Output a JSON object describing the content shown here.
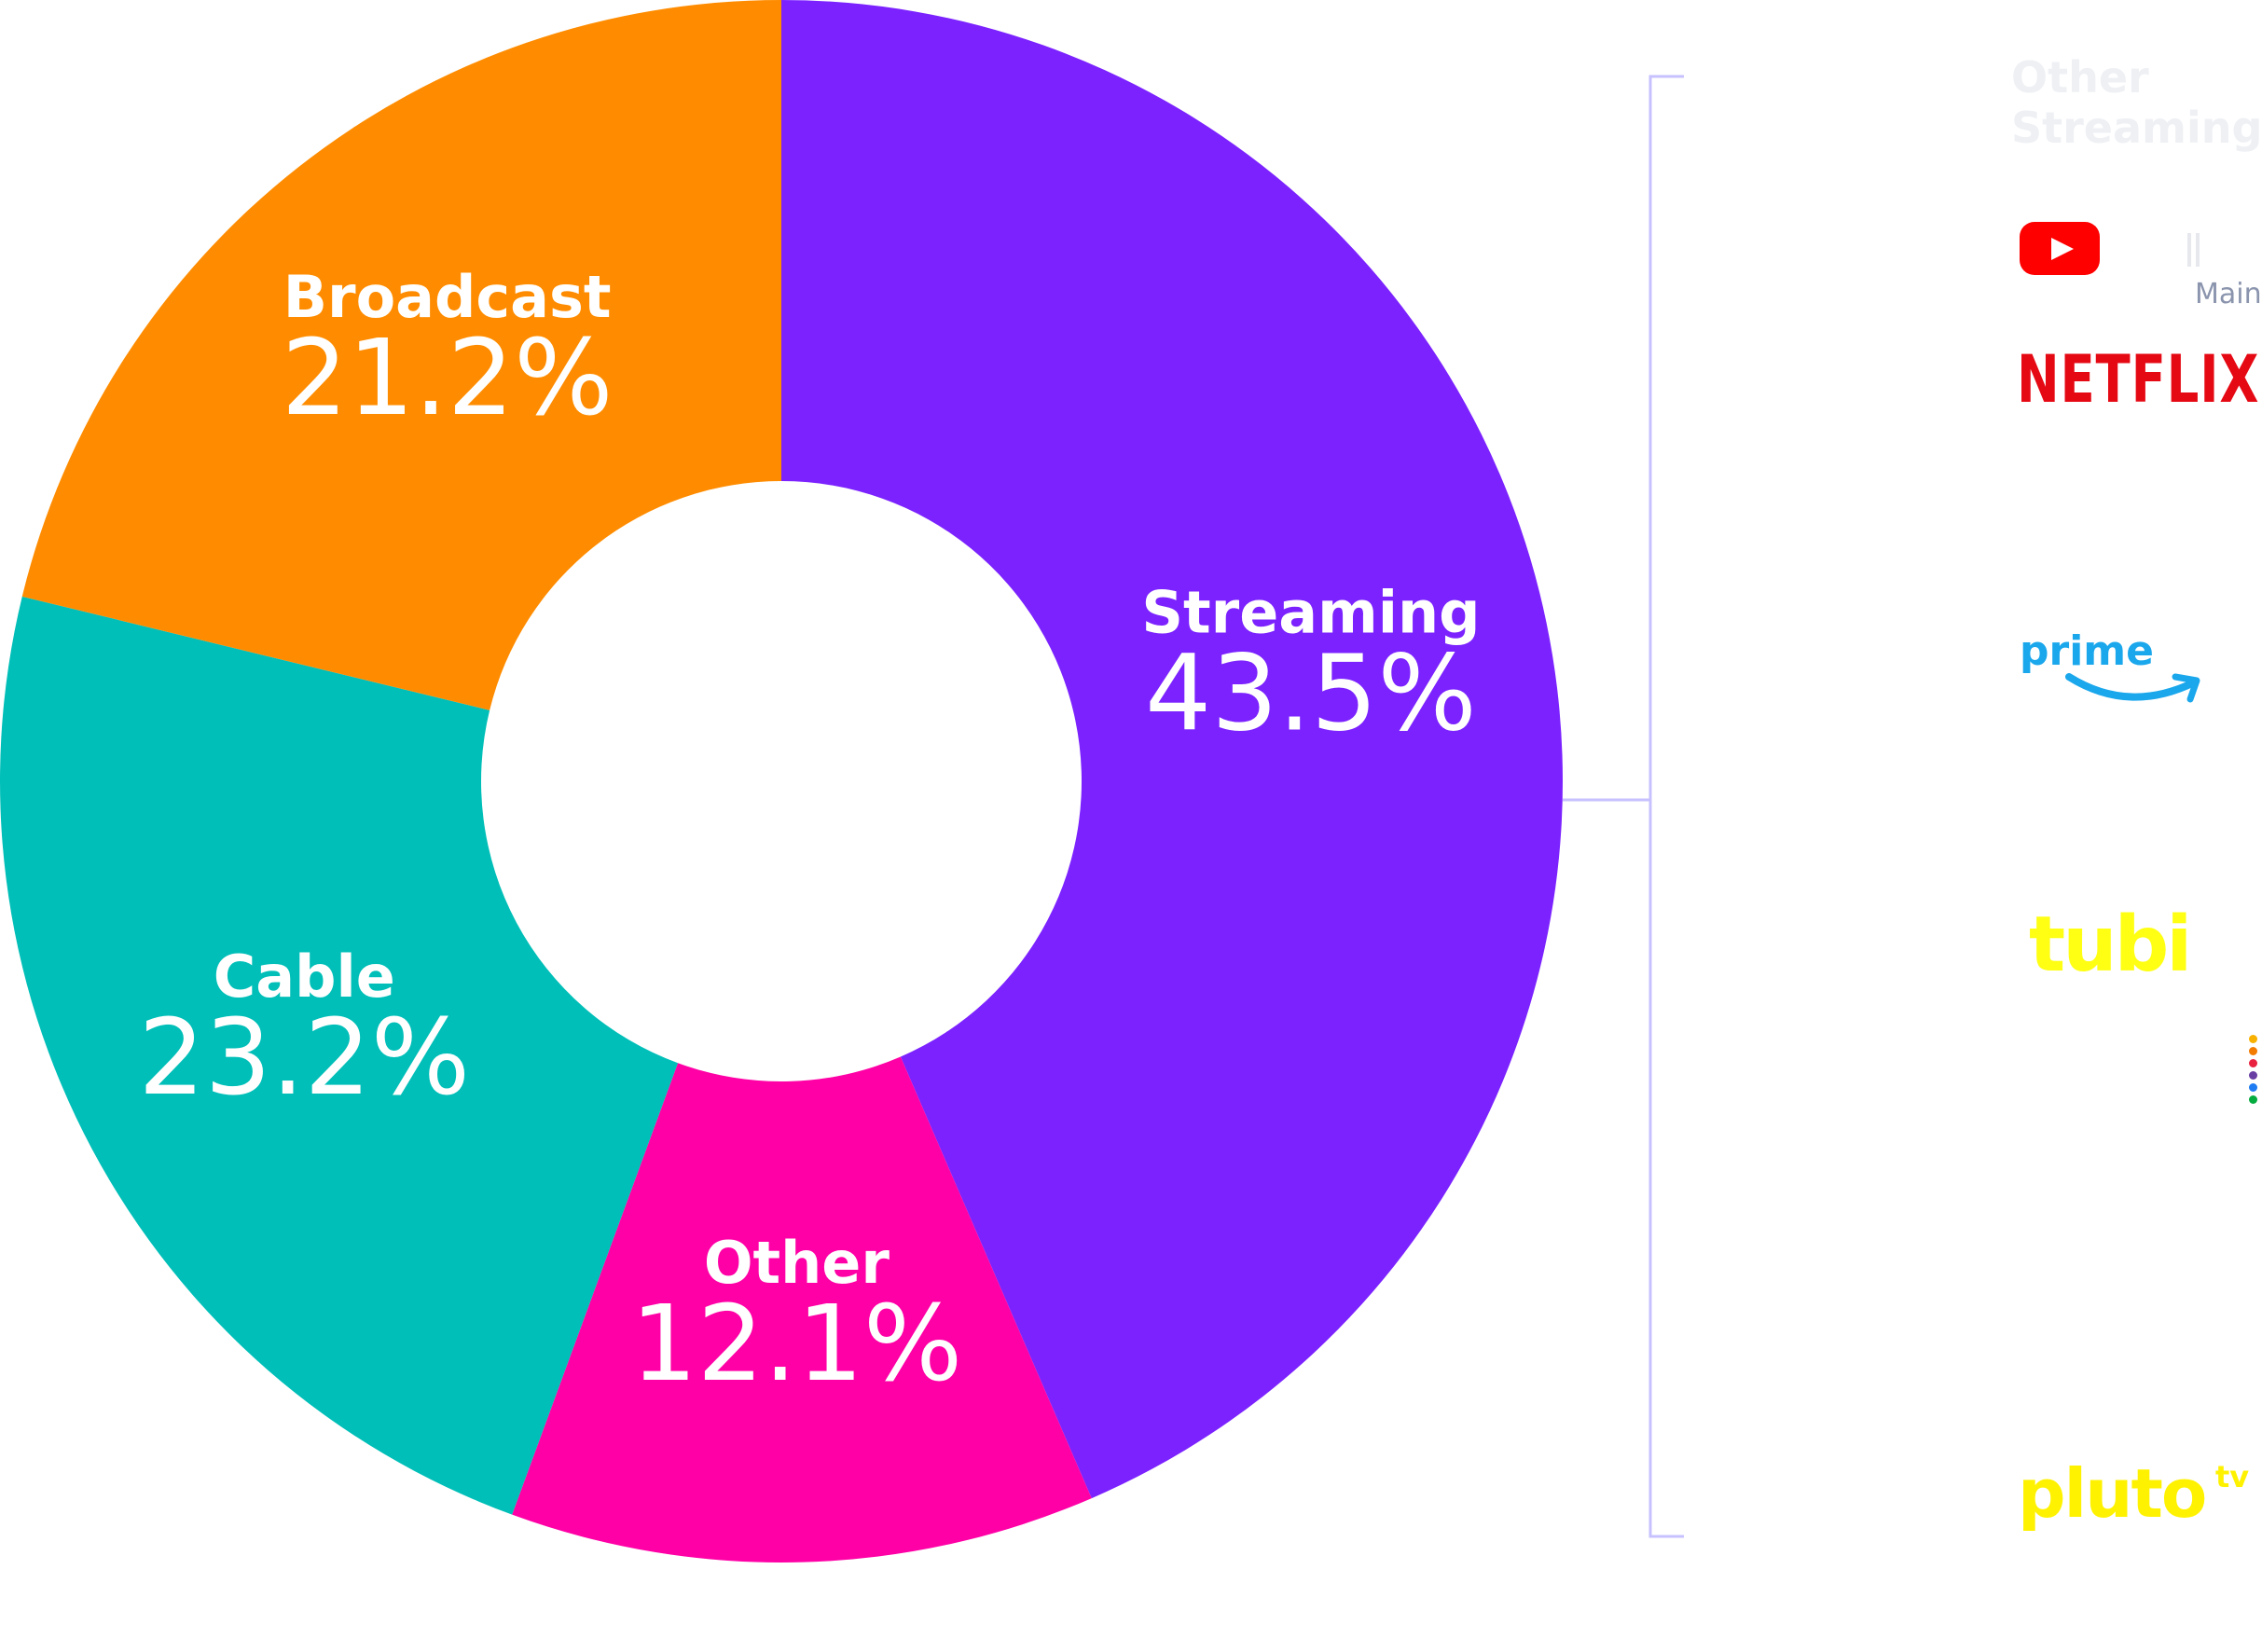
{
  "chart_data": {
    "type": "pie",
    "donut": true,
    "slices": [
      {
        "label": "Streaming",
        "value": 43.5,
        "display": "43.5%",
        "color": "#7b22ff"
      },
      {
        "label": "Other",
        "value": 12.1,
        "display": "12.1%",
        "color": "#ff00a6"
      },
      {
        "label": "Cable",
        "value": 23.2,
        "display": "23.2%",
        "color": "#00bfb8"
      },
      {
        "label": "Broadcast",
        "value": 21.2,
        "display": "21.2%",
        "color": "#ff8c00"
      }
    ],
    "start": "top",
    "direction": "clockwise",
    "breakout": {
      "slice": "Streaming",
      "connector_color": "#c7c2ff",
      "title": "Other Streaming",
      "services": [
        {
          "label": "YouTube",
          "icon": "youtube-play-icon",
          "color": "#ff0000",
          "sublabel": "Main"
        },
        {
          "label": "NETFLIX",
          "color": "#e50914"
        },
        {
          "label": "prime",
          "color": "#1aa7ec",
          "icon": "amazon-smile-icon"
        },
        {
          "label": "tubi",
          "color": "#ffff13"
        },
        {
          "label": "Peacock",
          "icon": "peacock-dots-icon",
          "dot_colors": [
            "#f8b100",
            "#f27b00",
            "#e8223f",
            "#6a3fa3",
            "#1f7cf2",
            "#05ac3f"
          ]
        },
        {
          "label": "pluto",
          "superscript": "tv",
          "color": "#fff200"
        }
      ]
    }
  }
}
